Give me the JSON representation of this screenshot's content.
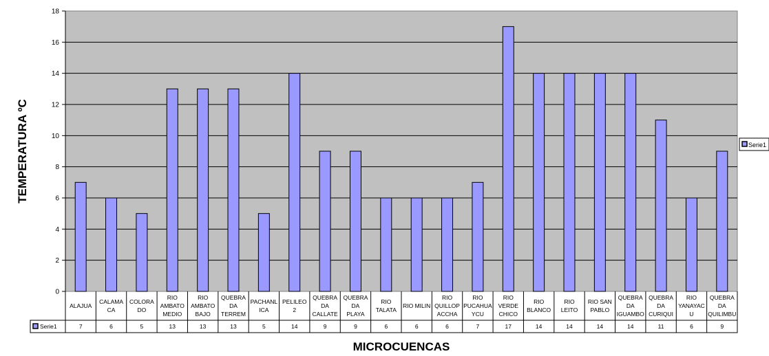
{
  "chart_data": {
    "type": "bar",
    "title": "",
    "xlabel": "MICROCUENCAS",
    "ylabel": "TEMPERATURA ºC",
    "ylim": [
      0,
      18
    ],
    "ytick_step": 2,
    "grid": true,
    "legend_position": "right",
    "categories": [
      "ALAJUA",
      "CALAMA CA",
      "COLORA DO",
      "RIO AMBATO MEDIO",
      "RIO AMBATO BAJO",
      "QUEBRA DA TERREM",
      "PACHANL ICA",
      "PELILEO 2",
      "QUEBRA DA CALLATE",
      "QUEBRA DA PLAYA",
      "RIO TALATA",
      "RIO MILIN",
      "RIO QUILLOP ACCHA",
      "RIO PUCAHUA YCU",
      "RIO VERDE CHICO",
      "RIO BLANCO",
      "RIO LEITO",
      "RIO SAN PABLO",
      "QUEBRA DA IGUAMBO",
      "QUEBRA DA CURIQUI",
      "RIO YANAYAC U",
      "QUEBRA DA QUILIMBU"
    ],
    "category_lines": [
      [
        "ALAJUA"
      ],
      [
        "CALAMA",
        "CA"
      ],
      [
        "COLORA",
        "DO"
      ],
      [
        "RIO",
        "AMBATO",
        "MEDIO"
      ],
      [
        "RIO",
        "AMBATO",
        "BAJO"
      ],
      [
        "QUEBRA",
        "DA",
        "TERREM"
      ],
      [
        "PACHANL",
        "ICA"
      ],
      [
        "PELILEO",
        "2"
      ],
      [
        "QUEBRA",
        "DA",
        "CALLATE"
      ],
      [
        "QUEBRA",
        "DA",
        "PLAYA"
      ],
      [
        "RIO",
        "TALATA"
      ],
      [
        "RIO MILIN"
      ],
      [
        "RIO",
        "QUILLOP",
        "ACCHA"
      ],
      [
        "RIO",
        "PUCAHUA",
        "YCU"
      ],
      [
        "RIO",
        "VERDE",
        "CHICO"
      ],
      [
        "RIO",
        "BLANCO"
      ],
      [
        "RIO",
        "LEITO"
      ],
      [
        "RIO SAN",
        "PABLO"
      ],
      [
        "QUEBRA",
        "DA",
        "IGUAMBO"
      ],
      [
        "QUEBRA",
        "DA",
        "CURIQUI"
      ],
      [
        "RIO",
        "YANAYAC",
        "U"
      ],
      [
        "QUEBRA",
        "DA",
        "QUILIMBU"
      ]
    ],
    "series": [
      {
        "name": "Serie1",
        "color": "#9999FF",
        "values": [
          7,
          6,
          5,
          13,
          13,
          13,
          5,
          14,
          9,
          9,
          6,
          6,
          6,
          7,
          17,
          14,
          14,
          14,
          14,
          11,
          6,
          9
        ]
      }
    ],
    "plot_background": "#C0C0C0"
  }
}
